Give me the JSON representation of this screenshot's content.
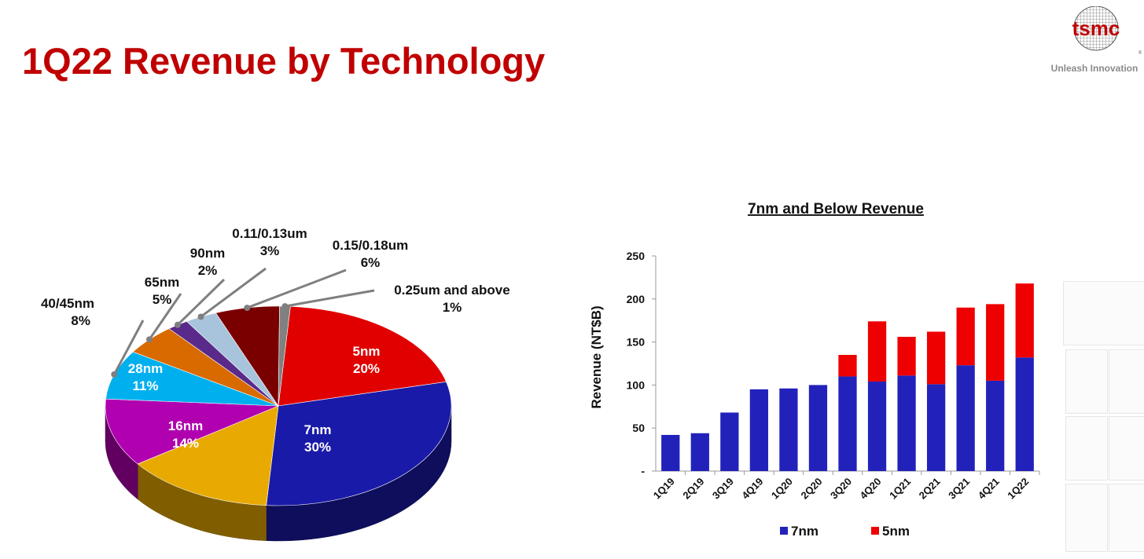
{
  "page": {
    "title": "1Q22 Revenue by Technology",
    "logo_text": "tsmc",
    "logo_tagline": "Unleash Innovation",
    "brand_color": "#c00000"
  },
  "chart_data": [
    {
      "type": "pie",
      "slices": [
        {
          "label": "5nm",
          "value": 20,
          "text": "20%",
          "color": "#e00000"
        },
        {
          "label": "7nm",
          "value": 30,
          "text": "30%",
          "color": "#1a1aa8"
        },
        {
          "label": "16nm",
          "value": 14,
          "text": "14%",
          "color": "#e8aa00"
        },
        {
          "label": "28nm",
          "value": 11,
          "text": "11%",
          "color": "#b000b0"
        },
        {
          "label": "40/45nm",
          "value": 8,
          "text": "8%",
          "color": "#00b0ee"
        },
        {
          "label": "65nm",
          "value": 5,
          "text": "5%",
          "color": "#d86a00"
        },
        {
          "label": "90nm",
          "value": 2,
          "text": "2%",
          "color": "#5a2a8a"
        },
        {
          "label": "0.11/0.13um",
          "value": 3,
          "text": "3%",
          "color": "#a8c4dc"
        },
        {
          "label": "0.15/0.18um",
          "value": 6,
          "text": "6%",
          "color": "#7a0000"
        },
        {
          "label": "0.25um and above",
          "value": 1,
          "text": "1%",
          "color": "#808080"
        }
      ]
    },
    {
      "type": "bar",
      "stacked": true,
      "title": "7nm and Below Revenue",
      "ylabel": "Revenue (NT$B)",
      "ylim": [
        0,
        250
      ],
      "yticks": [
        {
          "value": 0,
          "label": "-"
        },
        {
          "value": 50,
          "label": "50"
        },
        {
          "value": 100,
          "label": "100"
        },
        {
          "value": 150,
          "label": "150"
        },
        {
          "value": 200,
          "label": "200"
        },
        {
          "value": 250,
          "label": "250"
        }
      ],
      "categories": [
        "1Q19",
        "2Q19",
        "3Q19",
        "4Q19",
        "1Q20",
        "2Q20",
        "3Q20",
        "4Q20",
        "1Q21",
        "2Q21",
        "3Q21",
        "4Q21",
        "1Q22"
      ],
      "series": [
        {
          "name": "7nm",
          "color": "#2222bb",
          "values": [
            42,
            44,
            68,
            95,
            96,
            100,
            110,
            104,
            111,
            101,
            123,
            105,
            132
          ]
        },
        {
          "name": "5nm",
          "color": "#ee0000",
          "values": [
            0,
            0,
            0,
            0,
            0,
            0,
            25,
            70,
            45,
            61,
            67,
            89,
            86
          ]
        }
      ],
      "legend_position": "bottom"
    }
  ]
}
